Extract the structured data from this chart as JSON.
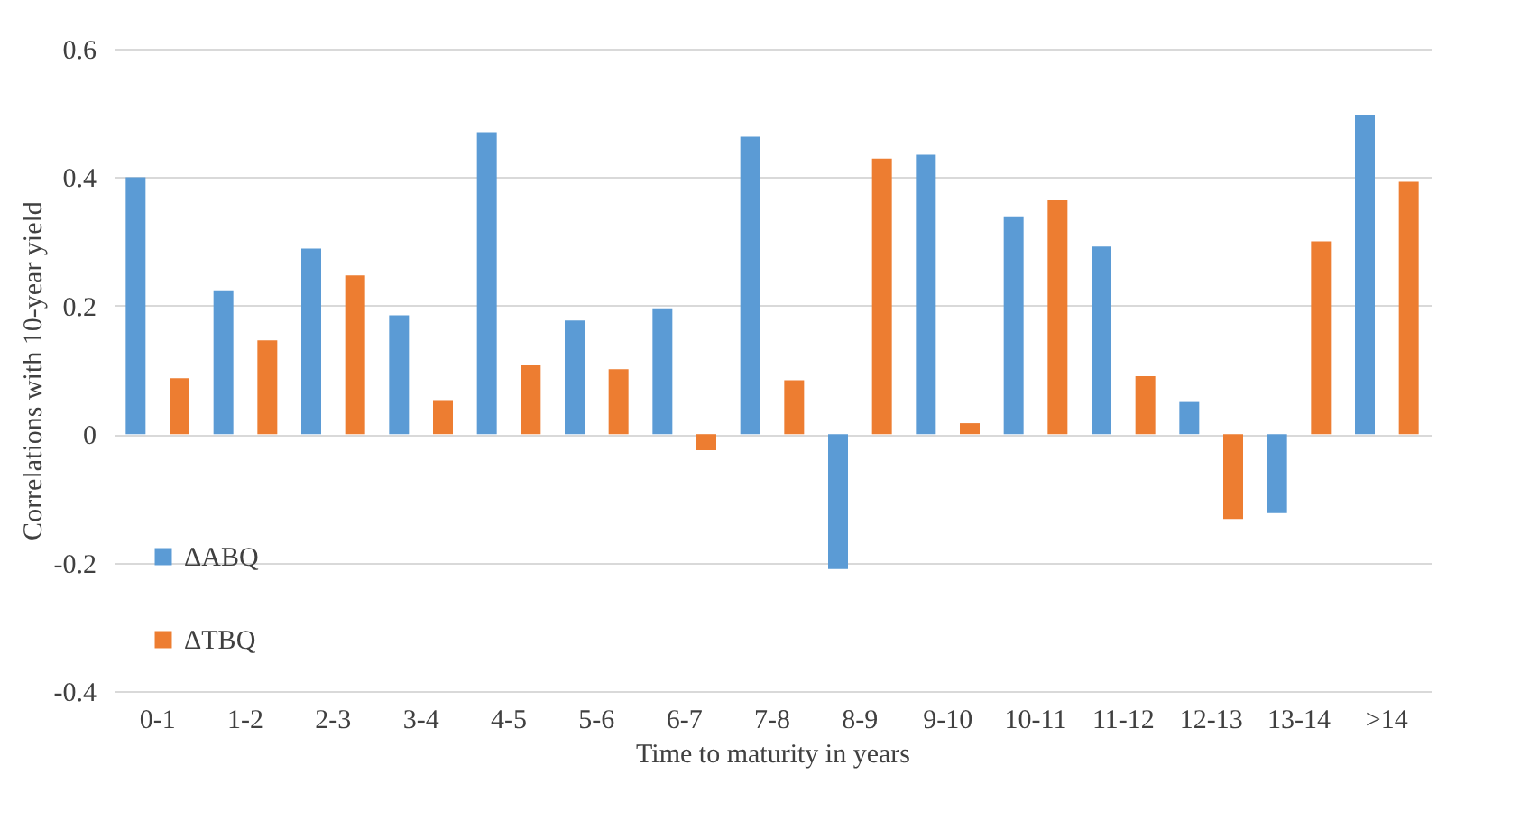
{
  "chart_data": {
    "type": "bar",
    "xlabel": "Time to maturity in years",
    "ylabel": "Correlations with 10-year yield",
    "categories": [
      "0-1",
      "1-2",
      "2-3",
      "3-4",
      "4-5",
      "5-6",
      "6-7",
      "7-8",
      "8-9",
      "9-10",
      "10-11",
      "11-12",
      "12-13",
      "13-14",
      ">14"
    ],
    "series": [
      {
        "name": "ΔABQ",
        "color": "#5b9bd5",
        "values": [
          0.4,
          0.224,
          0.289,
          0.185,
          0.47,
          0.177,
          0.196,
          0.463,
          -0.21,
          0.435,
          0.339,
          0.292,
          0.05,
          -0.123,
          0.496
        ]
      },
      {
        "name": "ΔTBQ",
        "color": "#ed7d31",
        "values": [
          0.087,
          0.146,
          0.247,
          0.053,
          0.107,
          0.101,
          -0.025,
          0.084,
          0.429,
          0.017,
          0.364,
          0.09,
          -0.132,
          0.3,
          0.393
        ]
      }
    ],
    "ylim": [
      -0.4,
      0.6
    ],
    "yticks": [
      -0.4,
      -0.2,
      0,
      0.2,
      0.4,
      0.6
    ],
    "grid": "y",
    "legend": "bottom left"
  }
}
